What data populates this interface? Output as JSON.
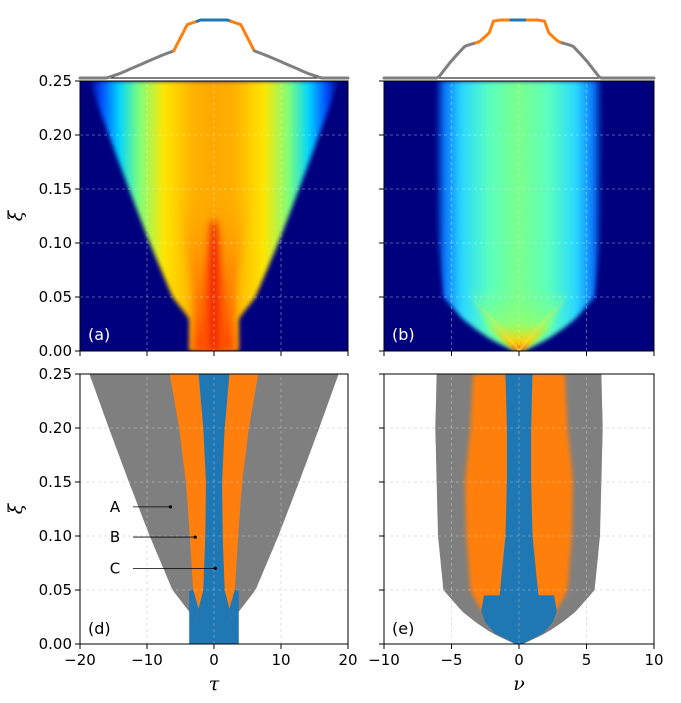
{
  "colors": {
    "gray": "#7f7f7f",
    "orange": "#ff7f0e",
    "blue": "#1f77b4",
    "navy": "#00007f"
  },
  "chart_data": [
    {
      "id": "a",
      "type": "heatmap",
      "panel_label": "(a)",
      "ylabel": "ξ",
      "xlim": [
        -20,
        20
      ],
      "ylim": [
        0,
        0.25
      ],
      "yticks": [
        "0.00",
        "0.05",
        "0.10",
        "0.15",
        "0.20",
        "0.25"
      ],
      "grid": true,
      "colormap": "jet"
    },
    {
      "id": "b",
      "type": "heatmap",
      "panel_label": "(b)",
      "xlim": [
        -10,
        10
      ],
      "ylim": [
        0,
        0.25
      ],
      "grid": true,
      "colormap": "jet"
    },
    {
      "id": "d",
      "type": "area",
      "panel_label": "(d)",
      "xlabel": "τ",
      "ylabel": "ξ",
      "xlim": [
        -20,
        20
      ],
      "ylim": [
        0,
        0.25
      ],
      "xticks": [
        "−20",
        "−10",
        "0",
        "10",
        "20"
      ],
      "yticks": [
        "0.00",
        "0.05",
        "0.10",
        "0.15",
        "0.20",
        "0.25"
      ],
      "grid": true,
      "annotations": [
        {
          "text": "A",
          "x": -6.5,
          "y": 0.127
        },
        {
          "text": "B",
          "x": -2.8,
          "y": 0.099
        },
        {
          "text": "C",
          "x": 0.2,
          "y": 0.07
        }
      ],
      "regions": {
        "outer_halfwidth": {
          "xi": [
            0,
            0.03,
            0.05,
            0.1,
            0.15,
            0.2,
            0.25
          ],
          "tau": [
            3.7,
            3.7,
            6.2,
            9.6,
            12.7,
            15.7,
            18.6
          ]
        },
        "orange_outer": {
          "xi": [
            0.02,
            0.05,
            0.1,
            0.15,
            0.2,
            0.25
          ],
          "tau": [
            1.7,
            3.1,
            3.6,
            4.2,
            5.2,
            6.6
          ]
        },
        "blue_halfwidth": {
          "xi": [
            0,
            0.05,
            0.1,
            0.15,
            0.2,
            0.25
          ],
          "tau": [
            3.6,
            1.6,
            1.3,
            1.2,
            1.6,
            2.3
          ]
        }
      }
    },
    {
      "id": "e",
      "type": "area",
      "panel_label": "(e)",
      "xlabel": "ν",
      "xlim": [
        -10,
        10
      ],
      "ylim": [
        0,
        0.25
      ],
      "xticks": [
        "−10",
        "−5",
        "0",
        "5",
        "10"
      ],
      "grid": true,
      "regions": {
        "gray_halfwidth": {
          "xi": [
            0,
            0.01,
            0.02,
            0.03,
            0.05,
            0.1,
            0.15,
            0.2,
            0.25
          ],
          "nu": [
            0.3,
            2.0,
            3.2,
            4.2,
            5.6,
            6.0,
            6.1,
            6.2,
            6.1
          ]
        },
        "orange_outer": {
          "xi": [
            0.02,
            0.04,
            0.05,
            0.1,
            0.15,
            0.2,
            0.25
          ],
          "nu": [
            2.2,
            3.2,
            3.6,
            3.9,
            4.0,
            3.6,
            3.4
          ]
        },
        "blue_halfwidth": {
          "xi": [
            0,
            0.01,
            0.02,
            0.05,
            0.1,
            0.15,
            0.2,
            0.25
          ],
          "nu": [
            0.2,
            1.2,
            1.6,
            1.4,
            1.0,
            0.9,
            0.9,
            1.0
          ]
        }
      }
    }
  ],
  "profiles": [
    {
      "id": "top-left",
      "x": [
        -20,
        -16,
        -14,
        -12,
        -10,
        -8,
        -6,
        -4,
        -2,
        2,
        4,
        6,
        8,
        10,
        12,
        14,
        16,
        20
      ],
      "y": [
        0,
        0,
        0.08,
        0.18,
        0.28,
        0.38,
        0.47,
        0.92,
        1.0,
        1.0,
        0.92,
        0.47,
        0.38,
        0.28,
        0.18,
        0.08,
        0,
        0
      ],
      "segments": [
        {
          "color": "gray",
          "range": [
            -20,
            -6
          ]
        },
        {
          "color": "orange",
          "range": [
            -6,
            -2.5
          ]
        },
        {
          "color": "blue",
          "range": [
            -2.5,
            2.5
          ]
        },
        {
          "color": "orange",
          "range": [
            2.5,
            6
          ]
        },
        {
          "color": "gray",
          "range": [
            6,
            20
          ]
        }
      ]
    },
    {
      "id": "top-right",
      "x": [
        -10,
        -6,
        -5,
        -4,
        -3,
        -2.8,
        -2.2,
        -1.9,
        -1.4,
        1.4,
        1.9,
        2.2,
        2.8,
        3,
        4,
        5,
        6,
        10
      ],
      "y": [
        0,
        0,
        0.3,
        0.55,
        0.62,
        0.65,
        0.78,
        0.98,
        1.0,
        1.0,
        0.98,
        0.78,
        0.65,
        0.62,
        0.55,
        0.3,
        0,
        0
      ],
      "segments": [
        {
          "color": "gray",
          "range": [
            -10,
            -3.2
          ]
        },
        {
          "color": "orange",
          "range": [
            -3.2,
            -0.6
          ]
        },
        {
          "color": "blue",
          "range": [
            -0.6,
            0.6
          ]
        },
        {
          "color": "orange",
          "range": [
            0.6,
            3.2
          ]
        },
        {
          "color": "gray",
          "range": [
            3.2,
            10
          ]
        }
      ]
    }
  ]
}
